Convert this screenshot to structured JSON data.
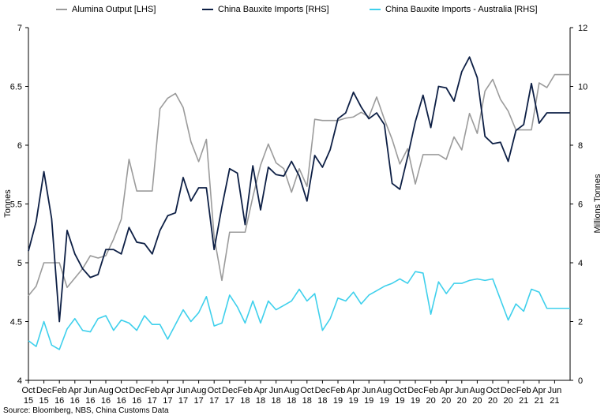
{
  "chart_data": {
    "type": "line",
    "ylabel_left": "Tonnes",
    "ylabel_right": "Millions Tonnes",
    "ylim_left": [
      4,
      7
    ],
    "ylim_right": [
      0,
      12
    ],
    "yticks_left": [
      "4",
      "4.5",
      "5",
      "5.5",
      "6",
      "6.5",
      "7"
    ],
    "yticks_right": [
      "0",
      "2",
      "4",
      "6",
      "8",
      "10",
      "12"
    ],
    "xticks": [
      [
        "Oct",
        "15"
      ],
      [
        "Dec",
        "15"
      ],
      [
        "Feb",
        "16"
      ],
      [
        "Apr",
        "16"
      ],
      [
        "Jun",
        "16"
      ],
      [
        "Aug",
        "16"
      ],
      [
        "Oct",
        "16"
      ],
      [
        "Dec",
        "16"
      ],
      [
        "Feb",
        "17"
      ],
      [
        "Apr",
        "17"
      ],
      [
        "Jun",
        "17"
      ],
      [
        "Aug",
        "17"
      ],
      [
        "Oct",
        "17"
      ],
      [
        "Dec",
        "17"
      ],
      [
        "Feb",
        "18"
      ],
      [
        "Apr",
        "18"
      ],
      [
        "Jun",
        "18"
      ],
      [
        "Aug",
        "18"
      ],
      [
        "Oct",
        "18"
      ],
      [
        "Dec",
        "18"
      ],
      [
        "Feb",
        "19"
      ],
      [
        "Apr",
        "19"
      ],
      [
        "Jun",
        "19"
      ],
      [
        "Aug",
        "19"
      ],
      [
        "Oct",
        "19"
      ],
      [
        "Dec",
        "19"
      ],
      [
        "Feb",
        "20"
      ],
      [
        "Apr",
        "20"
      ],
      [
        "Jun",
        "20"
      ],
      [
        "Aug",
        "20"
      ],
      [
        "Oct",
        "20"
      ],
      [
        "Dec",
        "20"
      ],
      [
        "Feb",
        "21"
      ],
      [
        "Apr",
        "21"
      ],
      [
        "Jun",
        "21"
      ]
    ],
    "legend_position": "top",
    "grid": false,
    "series": [
      {
        "name": "Alumina Output [LHS]",
        "axis": "left",
        "color": "#9b9b9b",
        "values": [
          4.72,
          4.8,
          5.0,
          5.0,
          5.0,
          4.79,
          4.87,
          4.95,
          5.06,
          5.04,
          5.06,
          5.2,
          5.37,
          5.88,
          5.61,
          5.61,
          5.61,
          6.31,
          6.4,
          6.44,
          6.32,
          6.03,
          5.86,
          6.05,
          5.22,
          4.85,
          5.26,
          5.26,
          5.26,
          5.56,
          5.83,
          6.01,
          5.85,
          5.8,
          5.6,
          5.8,
          5.65,
          6.22,
          6.21,
          6.21,
          6.21,
          6.23,
          6.24,
          6.28,
          6.24,
          6.41,
          6.22,
          6.05,
          5.84,
          5.97,
          5.67,
          5.92,
          5.92,
          5.92,
          5.88,
          6.07,
          5.96,
          6.27,
          6.1,
          6.46,
          6.56,
          6.39,
          6.29,
          6.13,
          6.13,
          6.13,
          6.53,
          6.49,
          6.6,
          6.6,
          6.6
        ]
      },
      {
        "name": "China Bauxite Imports [RHS]",
        "axis": "right",
        "color": "#0d1f45",
        "values": [
          4.4,
          5.4,
          7.1,
          5.5,
          2.0,
          5.1,
          4.3,
          3.8,
          3.5,
          3.6,
          4.45,
          4.45,
          4.3,
          5.2,
          4.7,
          4.65,
          4.3,
          5.1,
          5.6,
          5.7,
          6.9,
          6.1,
          6.55,
          6.55,
          4.45,
          5.9,
          7.2,
          7.05,
          5.3,
          7.3,
          5.8,
          7.25,
          7.0,
          6.95,
          7.45,
          6.95,
          6.1,
          7.65,
          7.25,
          7.85,
          8.9,
          9.1,
          9.8,
          9.3,
          8.9,
          9.1,
          8.7,
          6.7,
          6.5,
          7.6,
          8.8,
          9.7,
          8.6,
          10.0,
          9.95,
          9.5,
          10.5,
          11.0,
          10.3,
          8.3,
          8.05,
          8.1,
          7.45,
          8.5,
          8.7,
          10.1,
          8.75,
          9.1,
          9.1,
          9.1,
          9.1
        ]
      },
      {
        "name": "China Bauxite Imports - Australia [RHS]",
        "axis": "right",
        "color": "#3fd0ec",
        "values": [
          1.35,
          1.15,
          2.0,
          1.2,
          1.05,
          1.75,
          2.1,
          1.7,
          1.65,
          2.1,
          2.2,
          1.7,
          2.05,
          1.95,
          1.7,
          2.2,
          1.9,
          1.9,
          1.4,
          1.9,
          2.4,
          2.0,
          2.3,
          2.85,
          1.85,
          1.95,
          2.9,
          2.5,
          1.95,
          2.7,
          1.95,
          2.7,
          2.4,
          2.55,
          2.7,
          3.1,
          2.7,
          2.95,
          1.7,
          2.1,
          2.8,
          2.7,
          3.0,
          2.6,
          2.9,
          3.05,
          3.2,
          3.3,
          3.45,
          3.3,
          3.7,
          3.65,
          2.25,
          3.35,
          2.95,
          3.3,
          3.3,
          3.4,
          3.45,
          3.4,
          3.45,
          2.75,
          2.05,
          2.6,
          2.35,
          3.1,
          3.0,
          2.45,
          2.45,
          2.45,
          2.45
        ]
      }
    ]
  },
  "source": "Source: Bloomberg, NBS, China Customs Data"
}
